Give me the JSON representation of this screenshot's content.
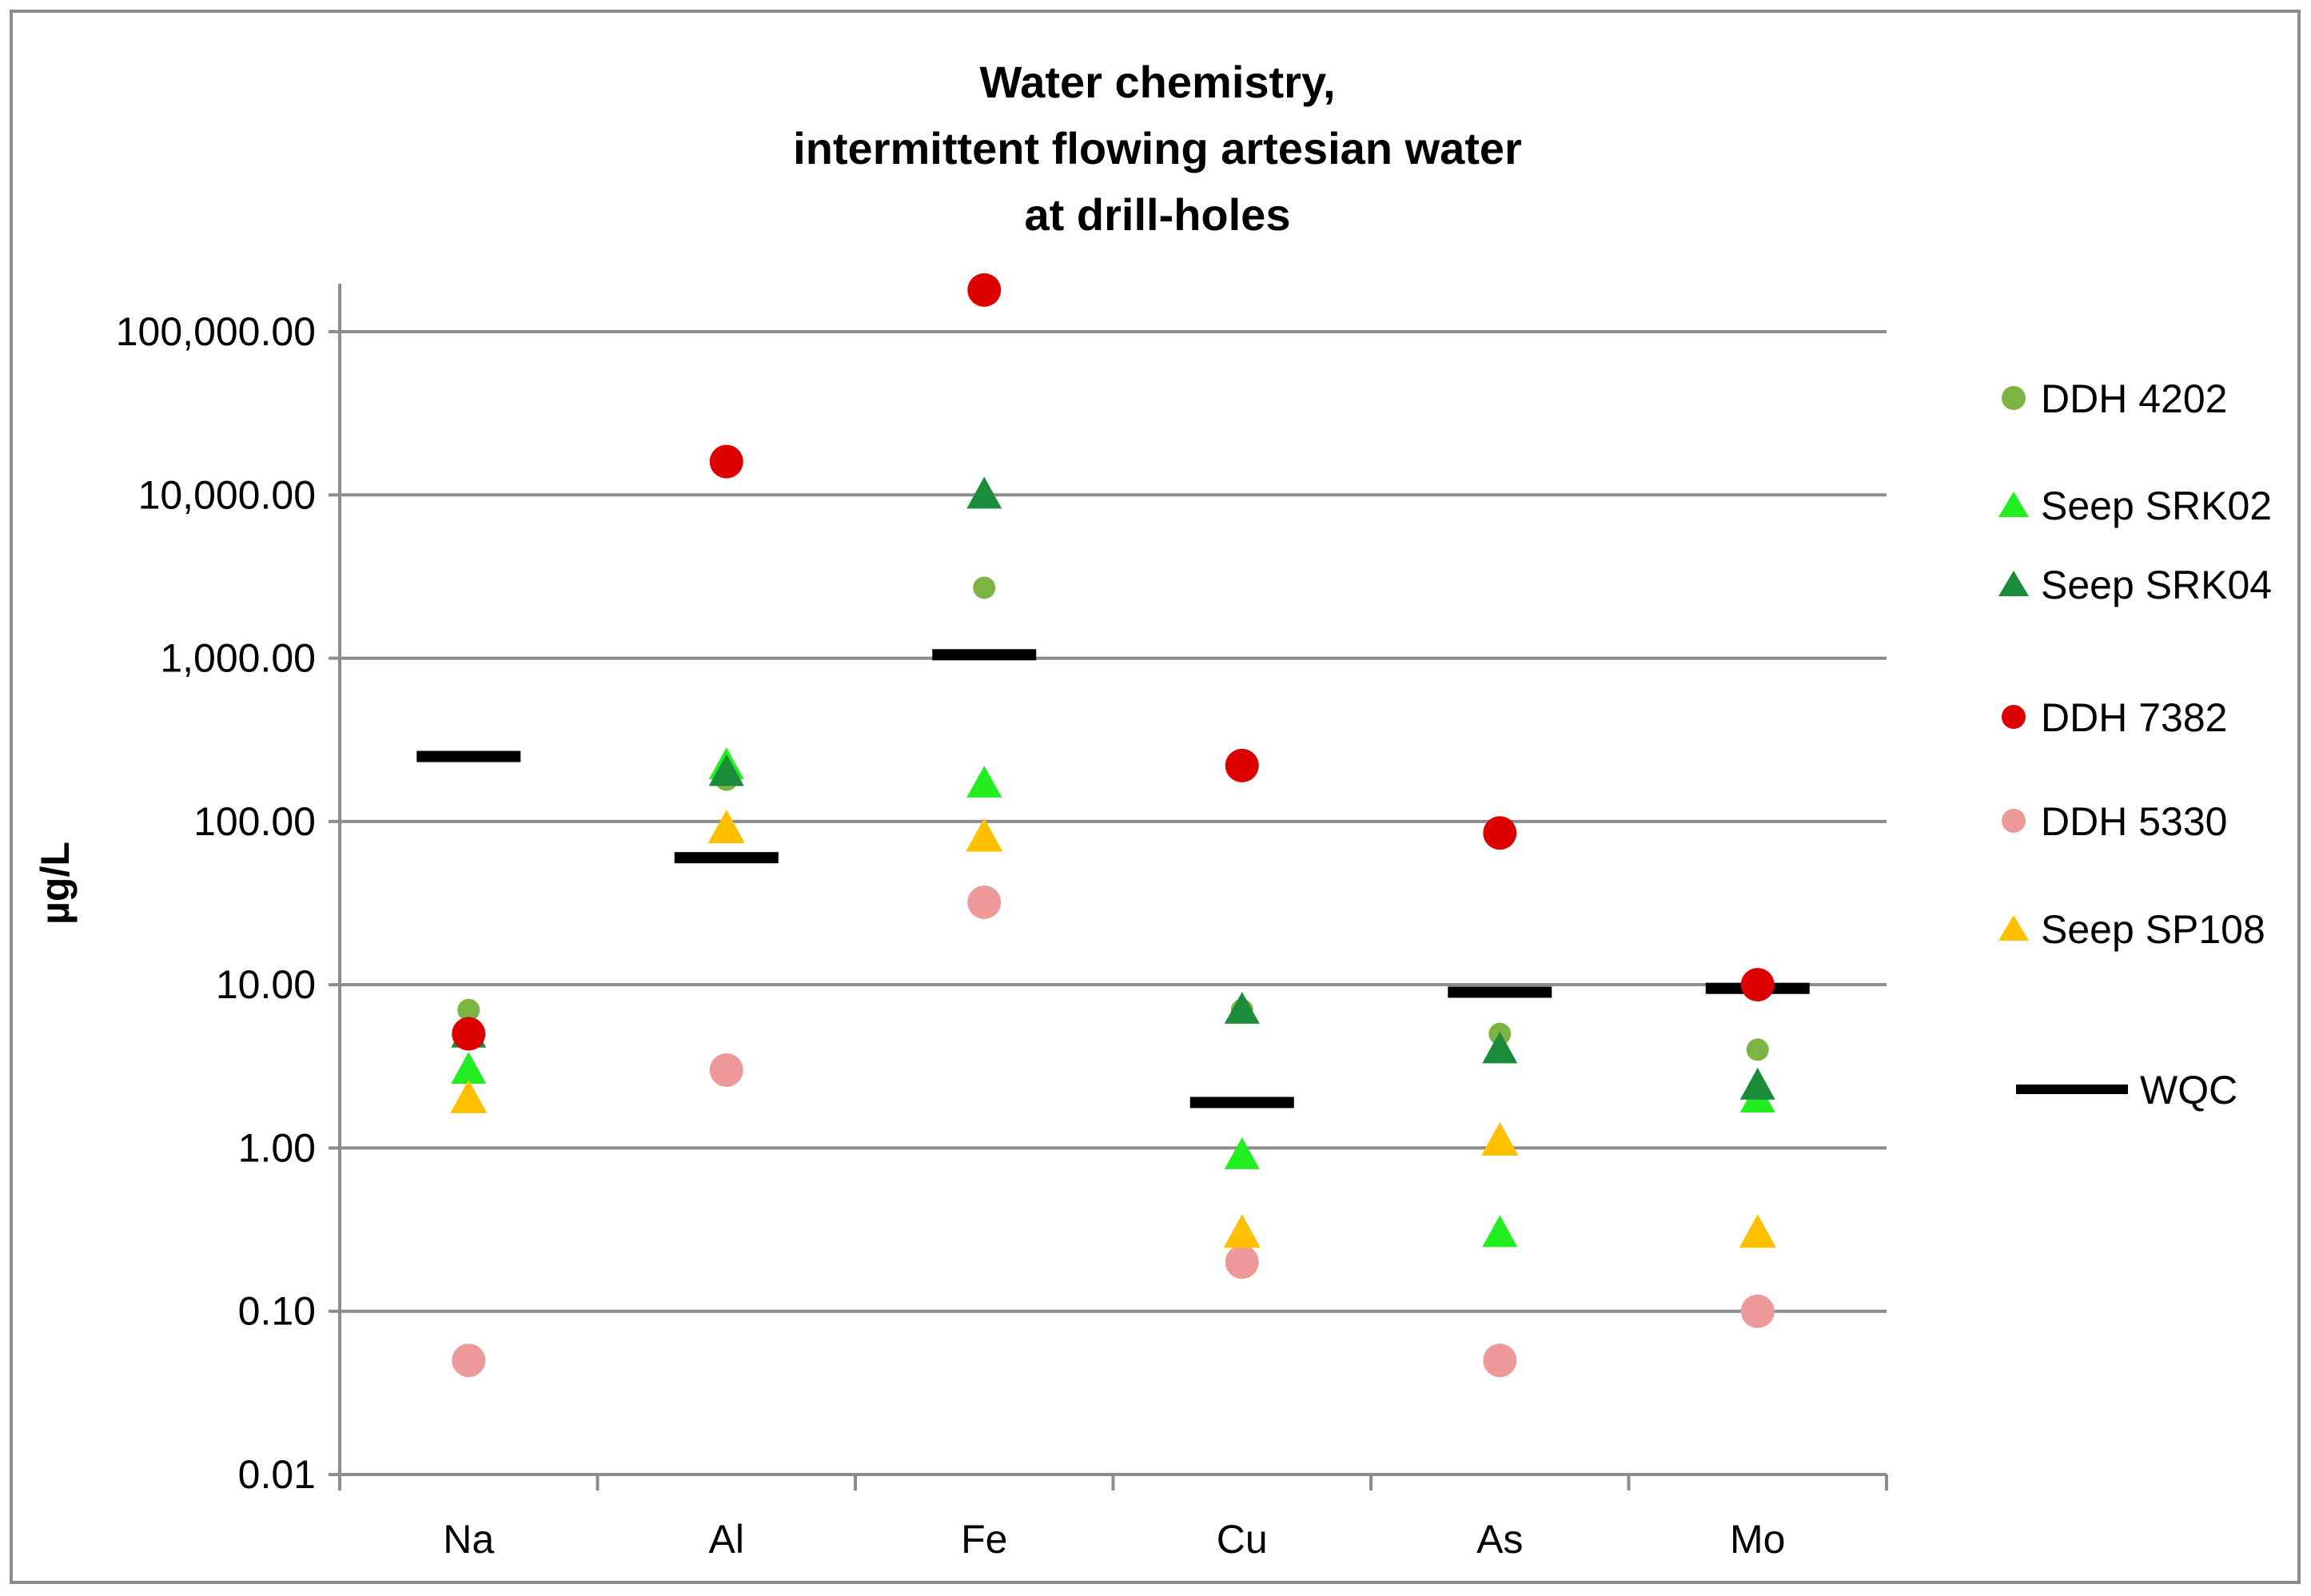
{
  "chart_data": {
    "type": "scatter",
    "title": [
      "Water chemistry,",
      "intermittent flowing artesian water",
      "at drill-holes"
    ],
    "xlabel": "",
    "ylabel": "µg/L",
    "y_scale": "log",
    "ylim": [
      0.01,
      100000
    ],
    "y_ticks": [
      {
        "value": 0.01,
        "label": "0.01"
      },
      {
        "value": 0.1,
        "label": "0.10"
      },
      {
        "value": 1,
        "label": "1.00"
      },
      {
        "value": 10,
        "label": "10.00"
      },
      {
        "value": 100,
        "label": "100.00"
      },
      {
        "value": 1000,
        "label": "1,000.00"
      },
      {
        "value": 10000,
        "label": "10,000.00"
      },
      {
        "value": 100000,
        "label": "100,000.00"
      }
    ],
    "categories": [
      "Na",
      "Al",
      "Fe",
      "Cu",
      "As",
      "Mo"
    ],
    "grid": true,
    "legend_position": "right",
    "series": [
      {
        "name": "DDH 4202",
        "marker": "circle",
        "size": "small",
        "color": "#7cb342",
        "values": [
          7,
          180,
          2700,
          7,
          5,
          4
        ]
      },
      {
        "name": "Seep SRK02",
        "marker": "triangle",
        "size": "medium",
        "color": "#22ee22",
        "values": [
          3,
          220,
          170,
          0.9,
          0.3,
          2
        ]
      },
      {
        "name": "Seep SRK04",
        "marker": "triangle",
        "size": "medium",
        "color": "#1a8c3a",
        "values": [
          5,
          200,
          10000,
          7,
          4,
          2.4
        ]
      },
      {
        "name": "DDH 7382",
        "marker": "circle",
        "size": "large",
        "color": "#dd0000",
        "values": [
          5,
          16000,
          180000,
          220,
          85,
          10
        ]
      },
      {
        "name": "DDH 5330",
        "marker": "circle",
        "size": "large",
        "color": "#ee9999",
        "values": [
          0.05,
          3,
          32,
          0.2,
          0.05,
          0.1
        ]
      },
      {
        "name": "Seep SP108",
        "marker": "triangle",
        "size": "large",
        "color": "#ffc000",
        "values": [
          2,
          90,
          80,
          0.3,
          1.1,
          0.3
        ]
      },
      {
        "name": "WQC",
        "marker": "dash",
        "size": "large",
        "color": "#000000",
        "values": [
          250,
          60,
          1050,
          1.9,
          9,
          9.5
        ]
      }
    ]
  }
}
